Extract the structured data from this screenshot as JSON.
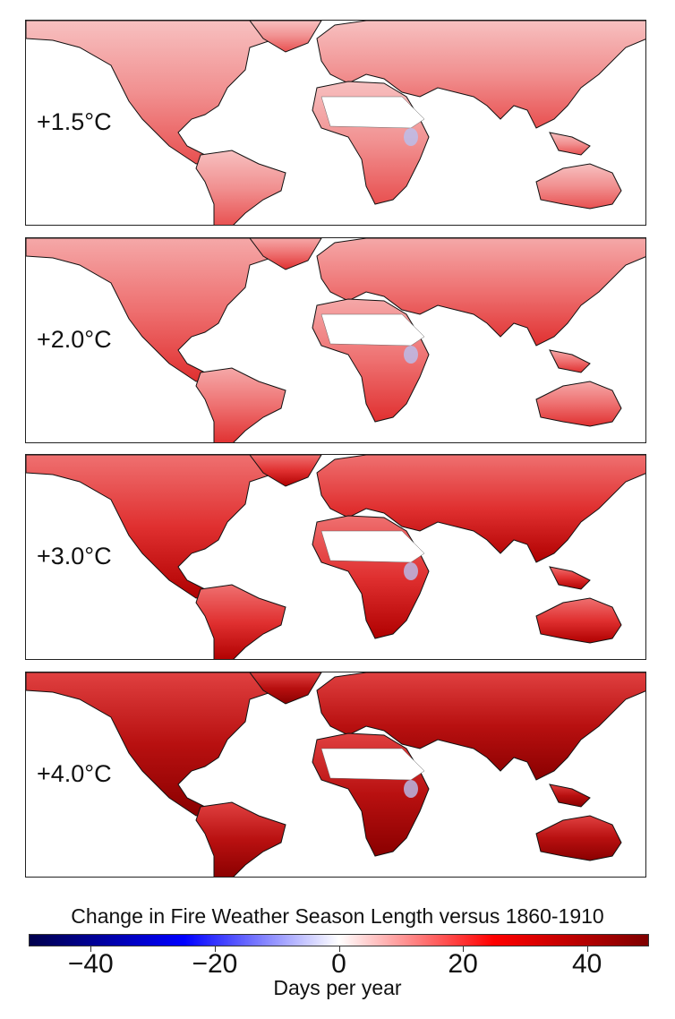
{
  "panels": [
    {
      "label": "+1.5°C"
    },
    {
      "label": "+2.0°C"
    },
    {
      "label": "+3.0°C"
    },
    {
      "label": "+4.0°C"
    }
  ],
  "colorbar": {
    "title": "Change in Fire Weather Season Length versus 1860-1910",
    "unit": "Days per year",
    "range": [
      -50,
      50
    ],
    "ticks": [
      "−40",
      "−20",
      "0",
      "20",
      "40"
    ],
    "tick_values": [
      -40,
      -20,
      0,
      20,
      40
    ],
    "colormap": [
      "#00004c",
      "#0000ff",
      "#ffffff",
      "#ff0000",
      "#7f0000"
    ]
  }
}
